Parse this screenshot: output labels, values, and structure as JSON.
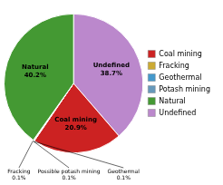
{
  "chart_data": {
    "type": "pie",
    "categories": [
      "Undefined",
      "Coal mining",
      "Geothermal",
      "Possible potash mining",
      "Fracking",
      "Natural"
    ],
    "values": [
      38.7,
      20.9,
      0.1,
      0.1,
      0.1,
      40.2
    ],
    "value_labels": [
      "38.7%",
      "20.9%",
      "0.1%",
      "0.1%",
      "0.1%",
      "40.2%"
    ],
    "colors": [
      "#bb88cc",
      "#cc2222",
      "#4499cc",
      "#6699bb",
      "#ccaa33",
      "#449933"
    ],
    "data_labels": true,
    "legend": "right",
    "legend_entries": [
      {
        "name": "Coal mining",
        "color": "#cc2222"
      },
      {
        "name": "Fracking",
        "color": "#ccaa33"
      },
      {
        "name": "Geothermal",
        "color": "#4499cc"
      },
      {
        "name": "Potash mining",
        "color": "#6699bb"
      },
      {
        "name": "Natural",
        "color": "#449933"
      },
      {
        "name": "Undefined",
        "color": "#bb88cc"
      }
    ]
  }
}
